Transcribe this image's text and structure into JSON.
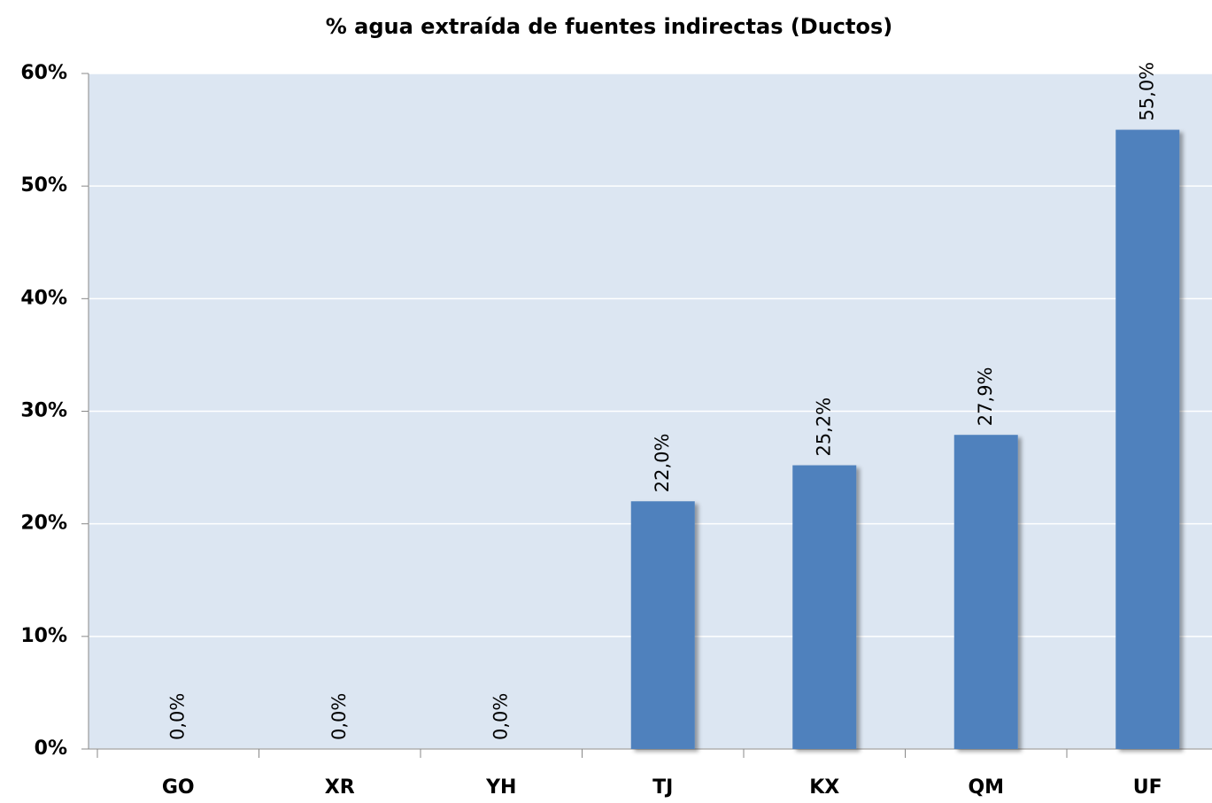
{
  "chart_data": {
    "type": "bar",
    "title": "% agua extraída de fuentes indirectas (Ductos)",
    "categories": [
      "GO",
      "XR",
      "YH",
      "TJ",
      "KX",
      "QM",
      "UF"
    ],
    "values": [
      0,
      0,
      0,
      22,
      25.2,
      27.9,
      55
    ],
    "value_labels": [
      "0,0%",
      "0,0%",
      "0,0%",
      "22,0%",
      "25,2%",
      "27,9%",
      "55,0%"
    ],
    "color": "#4f81bd",
    "ylim": [
      0,
      60
    ],
    "yticks": [
      {
        "value": 0,
        "label": "0%"
      },
      {
        "value": 10,
        "label": "10%"
      },
      {
        "value": 20,
        "label": "20%"
      },
      {
        "value": 30,
        "label": "30%"
      },
      {
        "value": 40,
        "label": "40%"
      },
      {
        "value": 50,
        "label": "50%"
      },
      {
        "value": 60,
        "label": "60%"
      }
    ],
    "grid": true
  }
}
